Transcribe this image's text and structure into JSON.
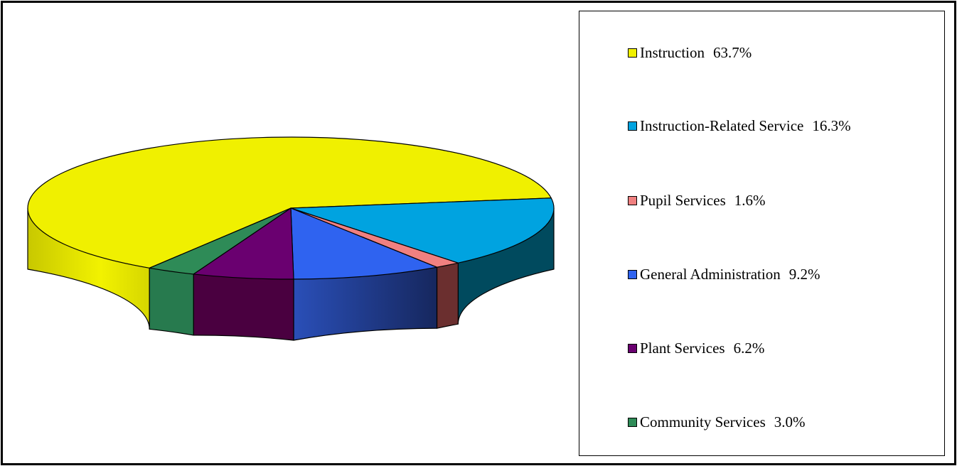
{
  "chart_data": {
    "type": "pie",
    "style": "3d",
    "slices": [
      {
        "label": "Instruction",
        "value": 63.7,
        "value_text": "63.7%",
        "color": "#F0F000",
        "side_color": "#D4D400"
      },
      {
        "label": "Instruction-Related Service",
        "value": 16.3,
        "value_text": "16.3%",
        "color": "#00A3E0",
        "side_color": "#004A5E"
      },
      {
        "label": "Pupil Services",
        "value": 1.6,
        "value_text": "1.6%",
        "color": "#F08080",
        "side_color": "#6B2F2F"
      },
      {
        "label": "General Administration",
        "value": 9.2,
        "value_text": "9.2%",
        "color": "#2F63F0",
        "side_color": "#1F3C8F"
      },
      {
        "label": "Plant Services",
        "value": 6.2,
        "value_text": "6.2%",
        "color": "#6A0070",
        "side_color": "#4A0040"
      },
      {
        "label": "Community Services",
        "value": 3.0,
        "value_text": "3.0%",
        "color": "#2E8B57",
        "side_color": "#277A4E"
      }
    ],
    "legend_position": "right"
  }
}
